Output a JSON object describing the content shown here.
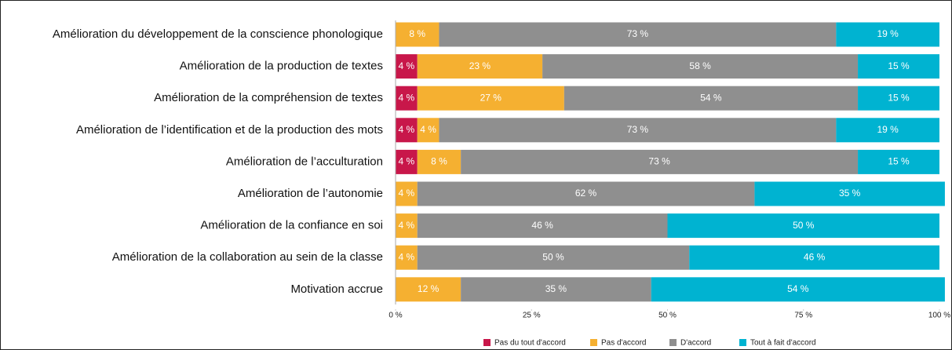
{
  "chart_data": {
    "type": "stacked-bar-horizontal",
    "categories": [
      "Amélioration du développement de la conscience phonologique",
      "Amélioration de la production de textes",
      "Amélioration de la compréhension de textes",
      "Amélioration de l’identification et de la production des mots",
      "Amélioration de l’acculturation",
      "Amélioration de l’autonomie",
      "Amélioration de la confiance en soi",
      "Amélioration de la collaboration au sein de la classe",
      "Motivation accrue"
    ],
    "series": [
      {
        "name": "Pas du tout d'accord",
        "color": "#c8174a",
        "values": [
          null,
          4,
          4,
          4,
          4,
          null,
          null,
          null,
          null
        ],
        "value_labels": [
          null,
          "4 %",
          "4 %",
          "4 %",
          "4 %",
          null,
          null,
          null,
          null
        ]
      },
      {
        "name": "Pas d'accord",
        "color": "#f5b031",
        "values": [
          8,
          23,
          27,
          4,
          8,
          4,
          4,
          4,
          12
        ],
        "value_labels": [
          "8 %",
          "23 %",
          "27 %",
          "4 %",
          "8 %",
          "4 %",
          "4 %",
          "4 %",
          "12 %"
        ]
      },
      {
        "name": "D'accord",
        "color": "#8f8f8f",
        "values": [
          73,
          58,
          54,
          73,
          73,
          62,
          46,
          50,
          35
        ],
        "value_labels": [
          "73 %",
          "58 %",
          "54 %",
          "73 %",
          "73 %",
          "62 %",
          "46 %",
          "50 %",
          "35 %"
        ]
      },
      {
        "name": "Tout à fait d'accord",
        "color": "#00b3d1",
        "values": [
          19,
          15,
          15,
          19,
          15,
          35,
          50,
          46,
          54
        ],
        "value_labels": [
          "19 %",
          "15 %",
          "15 %",
          "19 %",
          "15 %",
          "35 %",
          "50 %",
          "46 %",
          "54 %"
        ]
      }
    ],
    "xlim": [
      0,
      100
    ],
    "xticks": [
      {
        "value": 0,
        "label": "0 %"
      },
      {
        "value": 25,
        "label": "25 %"
      },
      {
        "value": 50,
        "label": "50 %"
      },
      {
        "value": 75,
        "label": "75 %"
      },
      {
        "value": 100,
        "label": "100 %"
      }
    ],
    "legend": "bottom"
  }
}
